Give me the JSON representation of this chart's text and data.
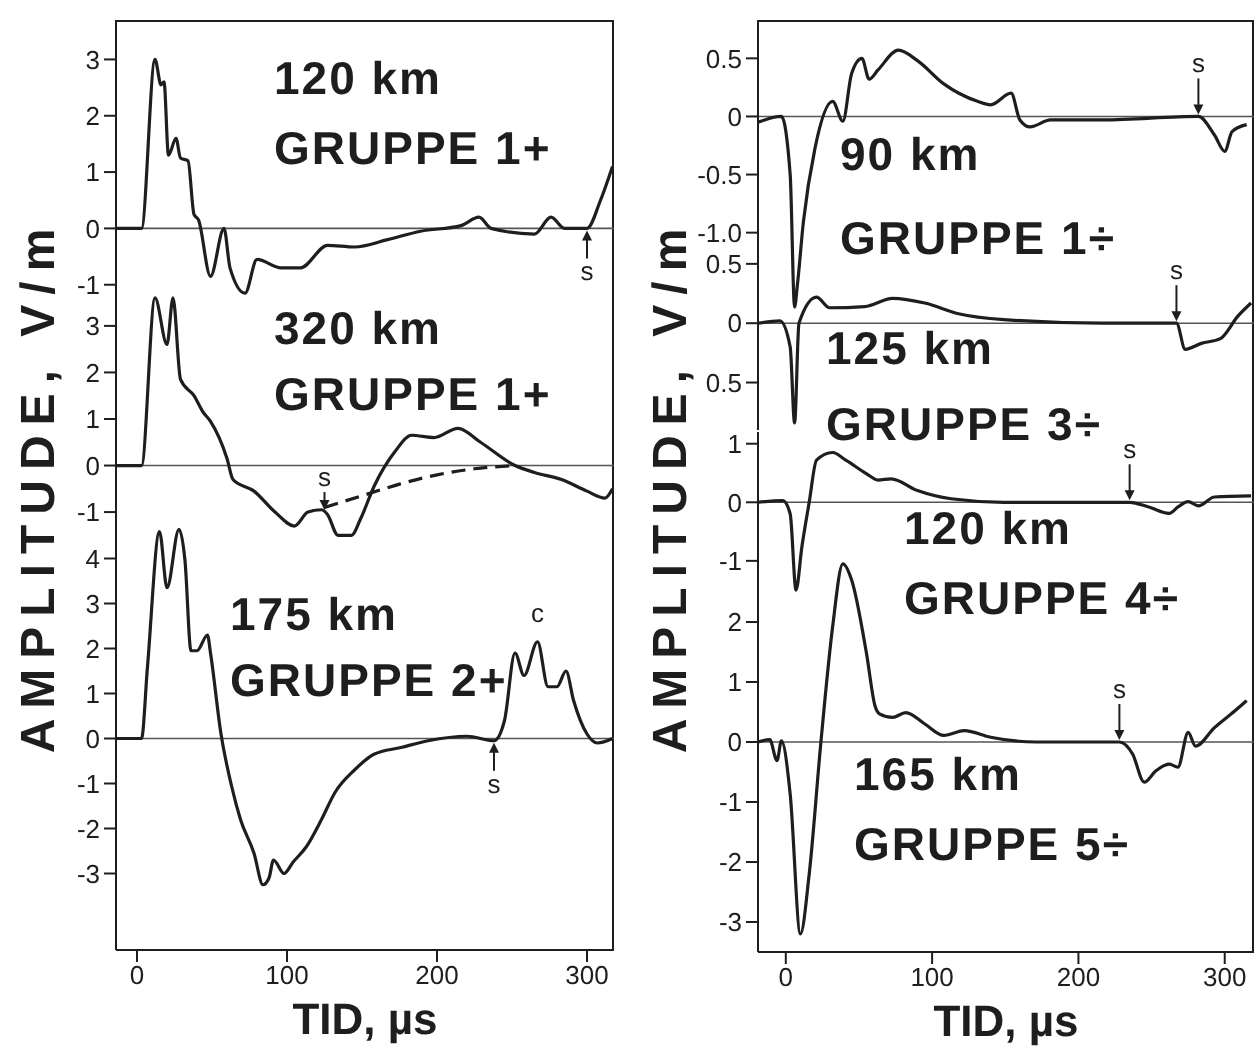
{
  "chart_data": [
    {
      "type": "line",
      "title": "120 km",
      "subtitle": "GRUPPE 1+",
      "ylabel": "AMPLITUDE, V/m",
      "xlim": [
        -14,
        318
      ],
      "xticks": [
        0,
        100,
        200,
        300
      ],
      "ylim": [
        -1.2,
        3.7
      ],
      "yticks": [
        -1,
        0,
        1,
        2,
        3
      ],
      "tick_labels": "y",
      "ref_lines": [
        {
          "axis": "y",
          "value": 0
        }
      ],
      "series": [
        {
          "color": "#1e1e1e",
          "x": [
            -14,
            3,
            12,
            16,
            18,
            21,
            26,
            29,
            34,
            38,
            41,
            49,
            58,
            62,
            72,
            80,
            96,
            109,
            127,
            145,
            167,
            189,
            216,
            228,
            236,
            265,
            276,
            285,
            300,
            309,
            317
          ],
          "values": [
            0,
            0,
            3.0,
            2.55,
            2.6,
            1.3,
            1.6,
            1.25,
            1.2,
            0.25,
            0.15,
            -0.85,
            0,
            -0.7,
            -1.15,
            -0.55,
            -0.7,
            -0.7,
            -0.3,
            -0.33,
            -0.2,
            -0.05,
            0.05,
            0.2,
            0,
            -0.1,
            0.2,
            0,
            0,
            0.5,
            1.1
          ]
        }
      ],
      "annotations": [
        {
          "text": "s",
          "x": 300,
          "y": 0
        }
      ]
    },
    {
      "type": "line",
      "title": "320 km",
      "subtitle": "GRUPPE 1+",
      "xlim": [
        -14,
        318
      ],
      "xticks": [
        0,
        100,
        200,
        300
      ],
      "ylim": [
        -1.6,
        3.9
      ],
      "yticks": [
        -1,
        0,
        1,
        2,
        3
      ],
      "tick_labels": "y",
      "ref_lines": [
        {
          "axis": "y",
          "value": 0
        }
      ],
      "series": [
        {
          "color": "#1e1e1e",
          "x": [
            -14,
            3,
            12,
            20,
            24,
            29,
            38,
            44,
            49,
            60,
            64,
            78,
            92,
            105,
            114,
            123,
            127,
            134,
            143,
            149,
            158,
            172,
            183,
            198,
            214,
            229,
            252,
            265,
            283,
            300,
            312,
            317
          ],
          "values": [
            0,
            0,
            3.6,
            2.6,
            3.6,
            1.85,
            1.5,
            1.15,
            0.95,
            0.15,
            -0.3,
            -0.55,
            -1.0,
            -1.3,
            -1.0,
            -0.95,
            -1.05,
            -1.5,
            -1.5,
            -1.15,
            -0.45,
            0.3,
            0.65,
            0.6,
            0.8,
            0.5,
            0,
            -0.15,
            -0.3,
            -0.55,
            -0.7,
            -0.5
          ]
        },
        {
          "color": "#1e1e1e",
          "line_style": "dashed",
          "x": [
            125,
            150,
            175,
            200,
            225,
            252
          ],
          "values": [
            -0.9,
            -0.65,
            -0.4,
            -0.2,
            -0.07,
            0
          ]
        }
      ],
      "annotations": [
        {
          "text": "s",
          "x": 125,
          "y": -1.0
        }
      ]
    },
    {
      "type": "line",
      "title": "175 km",
      "subtitle": "GRUPPE 2+",
      "xlabel": "TID, µs",
      "xlim": [
        -14,
        318
      ],
      "xticks": [
        0,
        100,
        200,
        300
      ],
      "ylim": [
        -4.7,
        4.9
      ],
      "yticks": [
        -3,
        -2,
        -1,
        0,
        1,
        2,
        3,
        4
      ],
      "ref_lines": [
        {
          "axis": "y",
          "value": 0
        }
      ],
      "series": [
        {
          "color": "#1e1e1e",
          "x": [
            -14,
            3,
            7,
            15,
            20,
            28,
            32,
            36,
            40,
            47,
            49,
            56,
            63,
            69,
            78,
            84,
            88,
            91,
            98,
            104,
            113,
            123,
            132,
            145,
            158,
            176,
            194,
            220,
            238,
            245,
            252,
            258,
            267,
            274,
            280,
            286,
            291,
            300,
            307,
            317
          ],
          "values": [
            0,
            0,
            1.6,
            4.6,
            3.35,
            4.65,
            3.95,
            1.95,
            1.95,
            2.3,
            1.9,
            0.1,
            -1.05,
            -1.8,
            -2.55,
            -3.25,
            -3.1,
            -2.7,
            -3.0,
            -2.75,
            -2.4,
            -1.8,
            -1.2,
            -0.7,
            -0.35,
            -0.2,
            -0.05,
            0.05,
            -0.05,
            0.4,
            1.9,
            1.4,
            2.15,
            1.15,
            1.15,
            1.5,
            0.85,
            0.1,
            -0.1,
            0
          ]
        }
      ],
      "annotations": [
        {
          "text": "s",
          "x": 238,
          "y": -0.05
        },
        {
          "text": "c",
          "x": 267,
          "y": 2.15
        }
      ]
    },
    {
      "type": "line",
      "title": "90 km",
      "subtitle": "GRUPPE 1÷",
      "ylabel": "AMPLITUDE, V/m",
      "xlim": [
        -19,
        320
      ],
      "xticks": [
        0,
        100,
        200,
        300
      ],
      "ylim": [
        -1.7,
        0.83
      ],
      "yticks": [
        {
          "value": -1,
          "label": "-1.0"
        },
        -0.5,
        0,
        0.5
      ],
      "tick_labels": "y",
      "ref_lines": [
        {
          "axis": "y",
          "value": 0
        }
      ],
      "series": [
        {
          "color": "#1e1e1e",
          "x": [
            -19,
            -3,
            3,
            6,
            8,
            12,
            20,
            32,
            39,
            45,
            52,
            57,
            63,
            77,
            90,
            108,
            131,
            140,
            154,
            160,
            167,
            181,
            217,
            282,
            293,
            300,
            305,
            315
          ],
          "values": [
            -0.05,
            0,
            -0.5,
            -1.64,
            -1.44,
            -0.91,
            -0.27,
            0.13,
            -0.04,
            0.37,
            0.5,
            0.32,
            0.4,
            0.57,
            0.48,
            0.28,
            0.13,
            0.1,
            0.2,
            -0.03,
            -0.09,
            -0.03,
            -0.03,
            0,
            -0.16,
            -0.3,
            -0.13,
            -0.07
          ]
        }
      ],
      "annotations": [
        {
          "text": "s",
          "x": 282,
          "y": 0
        }
      ]
    },
    {
      "type": "line",
      "title": "125 km",
      "subtitle": "GRUPPE 3÷",
      "xlim": [
        -19,
        320
      ],
      "xticks": [
        0,
        100,
        200,
        300
      ],
      "ylim": [
        -0.9,
        0.6
      ],
      "yticks": [
        {
          "value": -0.5,
          "label": "0.5"
        },
        0,
        0.5
      ],
      "tick_labels": "y",
      "ref_lines": [
        {
          "axis": "y",
          "value": 0
        }
      ],
      "series": [
        {
          "color": "#1e1e1e",
          "x": [
            -19,
            -4,
            3,
            6,
            9,
            21,
            30,
            54,
            73,
            95,
            118,
            149,
            216,
            267,
            273,
            284,
            297,
            309,
            318
          ],
          "values": [
            0,
            0.02,
            -0.2,
            -0.84,
            0,
            0.22,
            0.13,
            0.14,
            0.21,
            0.17,
            0.08,
            0.03,
            0,
            0,
            -0.22,
            -0.17,
            -0.13,
            0.06,
            0.17
          ]
        }
      ],
      "annotations": [
        {
          "text": "s",
          "x": 267,
          "y": 0
        }
      ]
    },
    {
      "type": "line",
      "title": "120 km",
      "subtitle": "GRUPPE 4÷",
      "xlim": [
        -19,
        320
      ],
      "xticks": [
        0,
        100,
        200,
        300
      ],
      "ylim": [
        -1.6,
        1.2
      ],
      "yticks": [
        -1,
        0,
        1
      ],
      "tick_labels": "y",
      "ref_lines": [
        {
          "axis": "y",
          "value": 0
        }
      ],
      "series": [
        {
          "color": "#1e1e1e",
          "x": [
            -19,
            -2,
            3,
            7,
            11,
            16,
            21,
            32,
            41,
            55,
            63,
            72,
            90,
            113,
            149,
            235,
            248,
            262,
            268,
            275,
            282,
            293,
            318
          ],
          "values": [
            0,
            0.03,
            -0.2,
            -1.5,
            -0.76,
            0,
            0.72,
            0.85,
            0.72,
            0.49,
            0.38,
            0.4,
            0.2,
            0.06,
            0,
            0,
            -0.08,
            -0.19,
            -0.08,
            0.01,
            -0.06,
            0.09,
            0.11
          ]
        }
      ],
      "annotations": [
        {
          "text": "s",
          "x": 235,
          "y": 0
        }
      ]
    },
    {
      "type": "line",
      "title": "165 km",
      "subtitle": "GRUPPE 5÷",
      "xlabel": "TID, µs",
      "xlim": [
        -19,
        320
      ],
      "xticks": [
        0,
        100,
        200,
        300
      ],
      "ylim": [
        -3.5,
        3.1
      ],
      "yticks": [
        -3,
        -2,
        -1,
        0,
        1,
        2
      ],
      "ref_lines": [
        {
          "axis": "y",
          "value": 0
        }
      ],
      "series": [
        {
          "color": "#1e1e1e",
          "x": [
            -19,
            -11,
            -6,
            -3,
            3,
            10,
            16,
            24,
            32,
            39,
            45,
            55,
            61,
            64,
            73,
            82,
            95,
            108,
            122,
            140,
            171,
            228,
            237,
            245,
            253,
            262,
            268,
            275,
            280,
            293,
            307,
            315
          ],
          "values": [
            0,
            0.04,
            -0.31,
            0.02,
            -0.87,
            -3.2,
            -2.2,
            0,
            1.92,
            2.97,
            2.7,
            1.5,
            0.6,
            0.47,
            0.41,
            0.49,
            0.3,
            0.11,
            0.19,
            0.08,
            0,
            0,
            -0.2,
            -0.67,
            -0.48,
            -0.37,
            -0.42,
            0.16,
            -0.07,
            0.24,
            0.52,
            0.69
          ]
        }
      ],
      "annotations": [
        {
          "text": "s",
          "x": 228,
          "y": 0
        }
      ]
    }
  ]
}
